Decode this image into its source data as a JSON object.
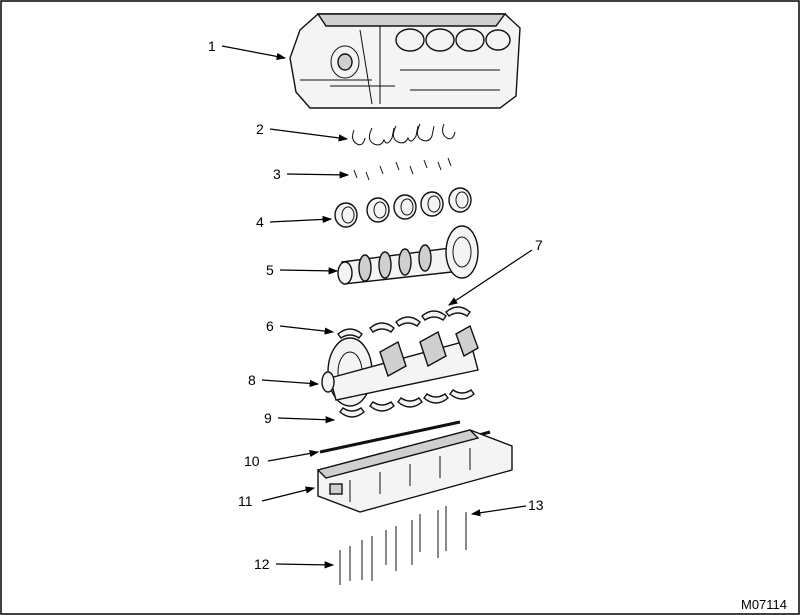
{
  "callouts": [
    "1",
    "2",
    "3",
    "4",
    "5",
    "6",
    "7",
    "8",
    "9",
    "10",
    "11",
    "12",
    "13"
  ],
  "figure_id": "M07114"
}
